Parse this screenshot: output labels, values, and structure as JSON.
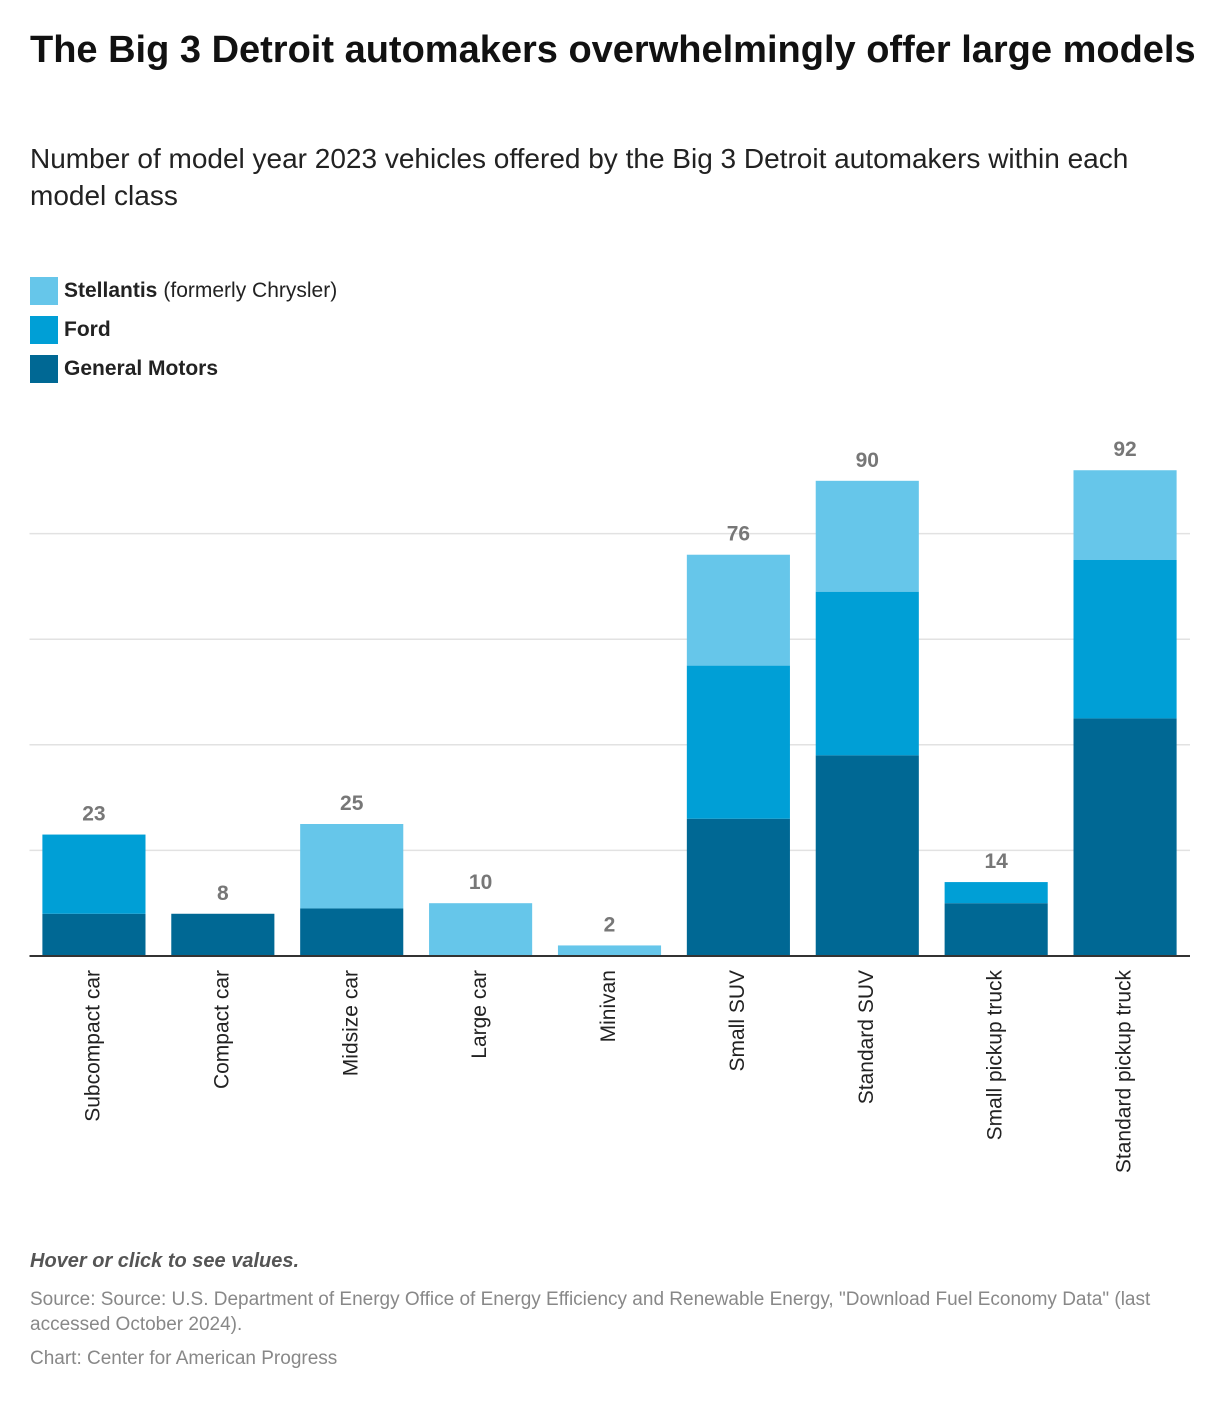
{
  "chart_data": {
    "type": "stacked_bar",
    "title": "The Big 3 Detroit automakers overwhelmingly offer large models",
    "subtitle": "Number of model year 2023 vehicles offered by the Big 3 Detroit automakers within each model class",
    "categories": [
      "Subcompact car",
      "Compact car",
      "Midsize car",
      "Large car",
      "Minivan",
      "Small SUV",
      "Standard SUV",
      "Small pickup truck",
      "Standard pickup truck"
    ],
    "series": [
      {
        "name": "Stellantis",
        "name_note": "(formerly Chrysler)",
        "color": "#66c6ea",
        "values": [
          0,
          0,
          16,
          10,
          2,
          21,
          21,
          0,
          17
        ]
      },
      {
        "name": "Ford",
        "color": "#009fd6",
        "values": [
          15,
          0,
          0,
          0,
          0,
          29,
          31,
          4,
          30
        ]
      },
      {
        "name": "General Motors",
        "color": "#006894",
        "values": [
          8,
          8,
          9,
          0,
          0,
          26,
          38,
          10,
          45
        ]
      }
    ],
    "totals": [
      23,
      8,
      25,
      10,
      2,
      76,
      90,
      14,
      92
    ],
    "ylim": [
      0,
      100
    ],
    "yticks": [
      20,
      40,
      60,
      80
    ],
    "grid": true,
    "note": "Hover or click to see values.",
    "source": "Source: Source: U.S. Department of Energy Office of Energy Efficiency and Renewable Energy, \"Download Fuel Economy Data\" (last accessed October 2024).",
    "credit": "Chart: Center for American Progress"
  }
}
